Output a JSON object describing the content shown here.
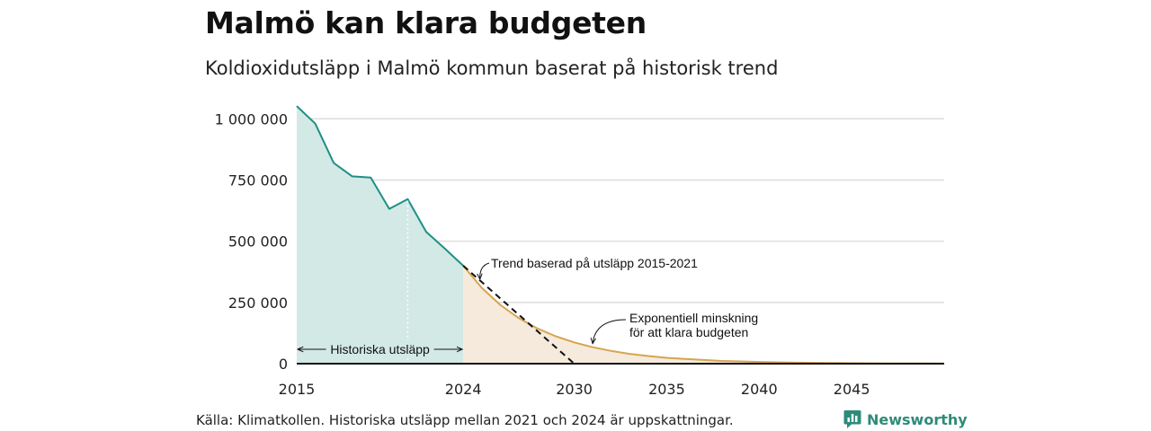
{
  "header": {
    "title": "Malmö kan klara budgeten",
    "subtitle": "Koldioxidutsläpp i Malmö kommun baserat på historisk trend"
  },
  "footer": {
    "source": "Källa: Klimatkollen. Historiska utsläpp mellan 2021 och 2024 är uppskattningar.",
    "brand": "Newsworthy",
    "brand_icon": "newsworthy-logo-icon"
  },
  "colors": {
    "historical_line": "#1f8f84",
    "historical_fill": "#d2e9e5",
    "budget_line": "#d6a450",
    "budget_fill": "#f5eadb",
    "trend_line": "#111111",
    "gridline": "#dddddd",
    "brand": "#2e8b7a"
  },
  "chart_data": {
    "type": "area",
    "title": "Malmö kan klara budgeten",
    "subtitle": "Koldioxidutsläpp i Malmö kommun baserat på historisk trend",
    "xlabel": "",
    "ylabel": "",
    "xlim": [
      2015,
      2050
    ],
    "ylim": [
      0,
      1100000
    ],
    "x_ticks": [
      2015,
      2024,
      2030,
      2035,
      2040,
      2045
    ],
    "y_ticks": [
      0,
      250000,
      500000,
      750000,
      1000000
    ],
    "y_tick_labels": [
      "0",
      "250 000",
      "500 000",
      "750 000",
      "1 000 000"
    ],
    "grid": true,
    "series": [
      {
        "name": "Historiska utsläpp",
        "kind": "area",
        "x": [
          2015,
          2016,
          2017,
          2018,
          2019,
          2020,
          2021,
          2022,
          2023,
          2024
        ],
        "values": [
          1052000,
          980000,
          820000,
          765000,
          760000,
          632000,
          672000,
          538000,
          470000,
          400000
        ]
      },
      {
        "name": "Exponentiell minskning för att klara budgeten",
        "kind": "area",
        "x": [
          2024,
          2025,
          2026,
          2027,
          2028,
          2029,
          2030,
          2031,
          2032,
          2033,
          2034,
          2035,
          2036,
          2037,
          2038,
          2039,
          2040,
          2041,
          2042,
          2043,
          2044,
          2045,
          2046,
          2047,
          2048,
          2049,
          2050
        ],
        "values": [
          400000,
          310000,
          240000,
          186000,
          144000,
          112000,
          87000,
          67000,
          52000,
          40000,
          31000,
          24000,
          19000,
          15000,
          11000,
          9000,
          7000,
          5500,
          4200,
          3200,
          2500,
          2000,
          1500,
          1200,
          900,
          700,
          550
        ]
      },
      {
        "name": "Trend baserad på utsläpp 2015-2021",
        "kind": "line",
        "style": "dashed",
        "x": [
          2024,
          2030,
          2050
        ],
        "values": [
          400000,
          0,
          0
        ]
      }
    ],
    "annotations": {
      "marker_year": 2021,
      "historical_range": [
        2015,
        2024
      ],
      "historical_label": "Historiska utsläpp",
      "trend_label": "Trend baserad på utsläpp 2015-2021",
      "exp_label_line1": "Exponentiell minskning",
      "exp_label_line2": "för att klara budgeten"
    }
  }
}
